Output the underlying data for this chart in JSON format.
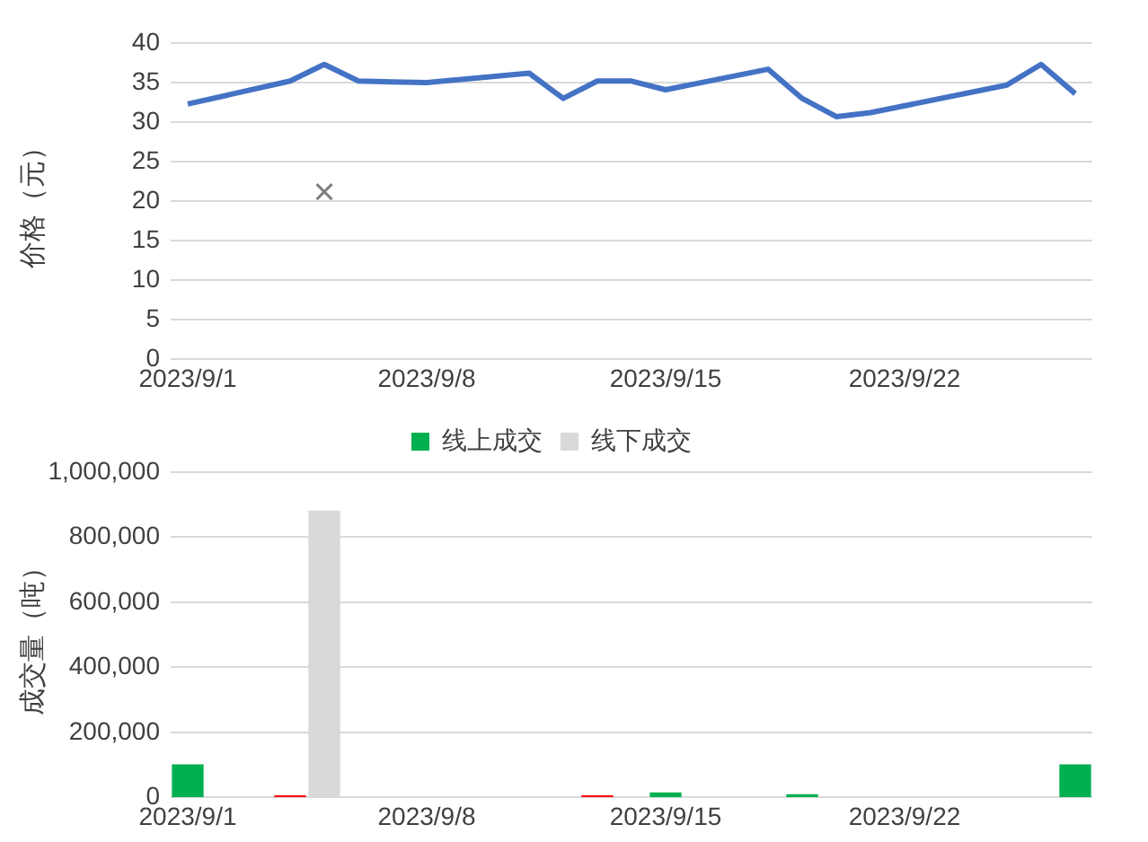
{
  "chart_data": [
    {
      "type": "line",
      "ylabel": "价格（元）",
      "ylim": [
        0,
        40
      ],
      "yticks": [
        0,
        5,
        10,
        15,
        20,
        25,
        30,
        35,
        40
      ],
      "xlim": [
        "2023-08-31T12:00",
        "2023-09-27T12:00"
      ],
      "xticks": [
        {
          "value": "2023-09-01",
          "label": "2023/9/1"
        },
        {
          "value": "2023-09-08",
          "label": "2023/9/8"
        },
        {
          "value": "2023-09-15",
          "label": "2023/9/15"
        },
        {
          "value": "2023-09-22",
          "label": "2023/9/22"
        }
      ],
      "grid": "y",
      "legend": false,
      "series": [
        {
          "type": "line",
          "color": "#4472c4",
          "marker": "none",
          "line_style": "solid",
          "x": [
            "2023-09-01",
            "2023-09-04",
            "2023-09-05",
            "2023-09-06",
            "2023-09-07",
            "2023-09-08",
            "2023-09-11",
            "2023-09-12",
            "2023-09-13",
            "2023-09-14",
            "2023-09-15",
            "2023-09-18",
            "2023-09-19",
            "2023-09-20",
            "2023-09-21",
            "2023-09-25",
            "2023-09-26",
            "2023-09-27"
          ],
          "values": [
            32.3,
            35.2,
            37.3,
            35.2,
            35.1,
            35.0,
            36.2,
            33.0,
            35.2,
            35.2,
            34.1,
            36.7,
            33.0,
            30.7,
            31.2,
            34.7,
            37.3,
            33.6
          ]
        },
        {
          "type": "scatter",
          "color": "#7f7f7f",
          "marker": "cross",
          "x": [
            "2023-09-05"
          ],
          "values": [
            21.2
          ]
        }
      ]
    },
    {
      "type": "bar",
      "ylabel": "成交量（吨）",
      "ylim": [
        0,
        1000000
      ],
      "yticks": [
        0,
        {
          "value": 200000,
          "label": "200,000"
        },
        {
          "value": 400000,
          "label": "400,000"
        },
        {
          "value": 600000,
          "label": "600,000"
        },
        {
          "value": 800000,
          "label": "800,000"
        },
        {
          "value": 1000000,
          "label": "1,000,000"
        }
      ],
      "xlim": [
        "2023-08-31T12:00",
        "2023-09-27T12:00"
      ],
      "xticks": [
        {
          "value": "2023-09-01",
          "label": "2023/9/1"
        },
        {
          "value": "2023-09-08",
          "label": "2023/9/8"
        },
        {
          "value": "2023-09-15",
          "label": "2023/9/15"
        },
        {
          "value": "2023-09-22",
          "label": "2023/9/22"
        }
      ],
      "grid": "y",
      "legend": "top",
      "series": [
        {
          "name": "线上成交",
          "color": "#00b050",
          "x": [
            "2023-09-01",
            "2023-09-15",
            "2023-09-19",
            "2023-09-27"
          ],
          "values": [
            100000,
            14000,
            8000,
            100000
          ]
        },
        {
          "name": "线下成交",
          "color": "#d9d9d9",
          "x": [
            "2023-09-05"
          ],
          "values": [
            880000
          ]
        },
        {
          "color": "#ff0000",
          "x": [
            "2023-09-04",
            "2023-09-13"
          ],
          "values": [
            5000,
            5000
          ]
        }
      ]
    }
  ]
}
